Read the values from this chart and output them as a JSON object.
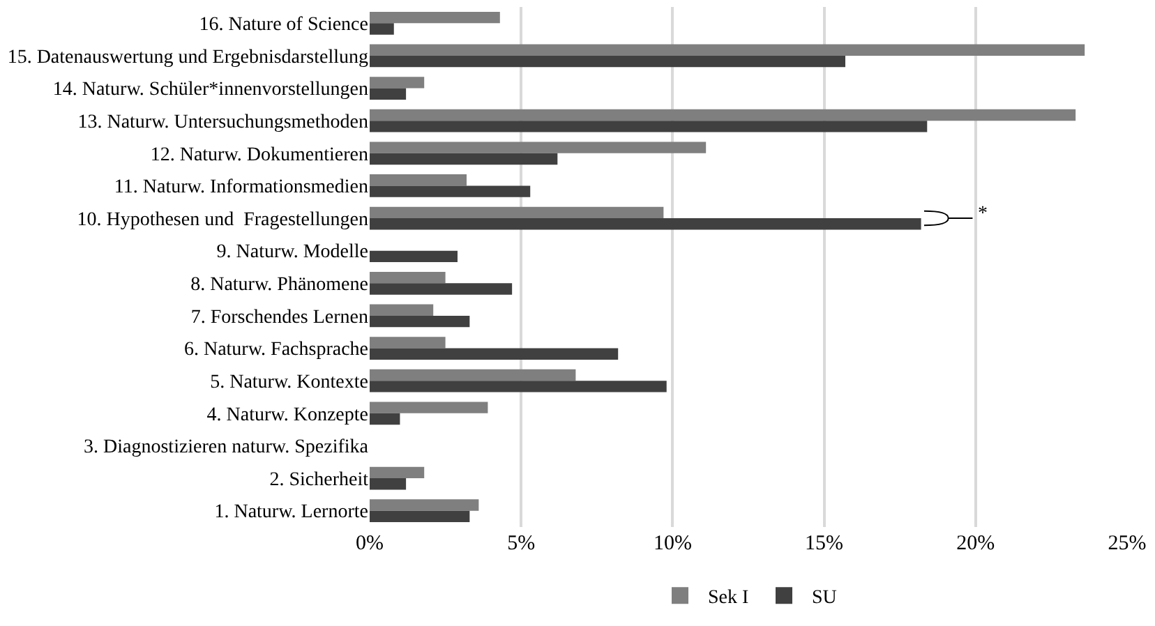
{
  "chart_data": {
    "type": "bar",
    "orientation": "horizontal",
    "categories": [
      "16. Nature of Science",
      "15. Datenauswertung und Ergebnisdarstellung",
      "14. Naturw. Schüler*innenvorstellungen",
      "13. Naturw. Untersuchungsmethoden",
      "12. Naturw. Dokumentieren",
      "11. Naturw. Informationsmedien",
      "10. Hypothesen und  Fragestellungen",
      "9. Naturw. Modelle",
      "8. Naturw. Phänomene",
      "7. Forschendes Lernen",
      "6. Naturw. Fachsprache",
      "5. Naturw. Kontexte",
      "4. Naturw. Konzepte",
      "3. Diagnostizieren naturw. Spezifika",
      "2. Sicherheit",
      "1. Naturw. Lernorte"
    ],
    "series": [
      {
        "name": "Sek I",
        "color": "#7f7f7f",
        "values": [
          4.3,
          23.6,
          1.8,
          23.3,
          11.1,
          3.2,
          9.7,
          0,
          2.5,
          2.1,
          2.5,
          6.8,
          3.9,
          0,
          1.8,
          3.6
        ]
      },
      {
        "name": "SU",
        "color": "#404040",
        "values": [
          0.8,
          15.7,
          1.2,
          18.4,
          6.2,
          5.3,
          18.2,
          2.9,
          4.7,
          3.3,
          8.2,
          9.8,
          1.0,
          0,
          1.2,
          3.3
        ]
      }
    ],
    "xlim": [
      0,
      25
    ],
    "xticks": [
      {
        "value": 0,
        "label": "0%"
      },
      {
        "value": 5,
        "label": "5%"
      },
      {
        "value": 10,
        "label": "10%"
      },
      {
        "value": 15,
        "label": "15%"
      },
      {
        "value": 20,
        "label": "20%"
      },
      {
        "value": 25,
        "label": "25%"
      }
    ],
    "grid": "x",
    "legend": "bottom",
    "annotations": [
      "*"
    ]
  }
}
